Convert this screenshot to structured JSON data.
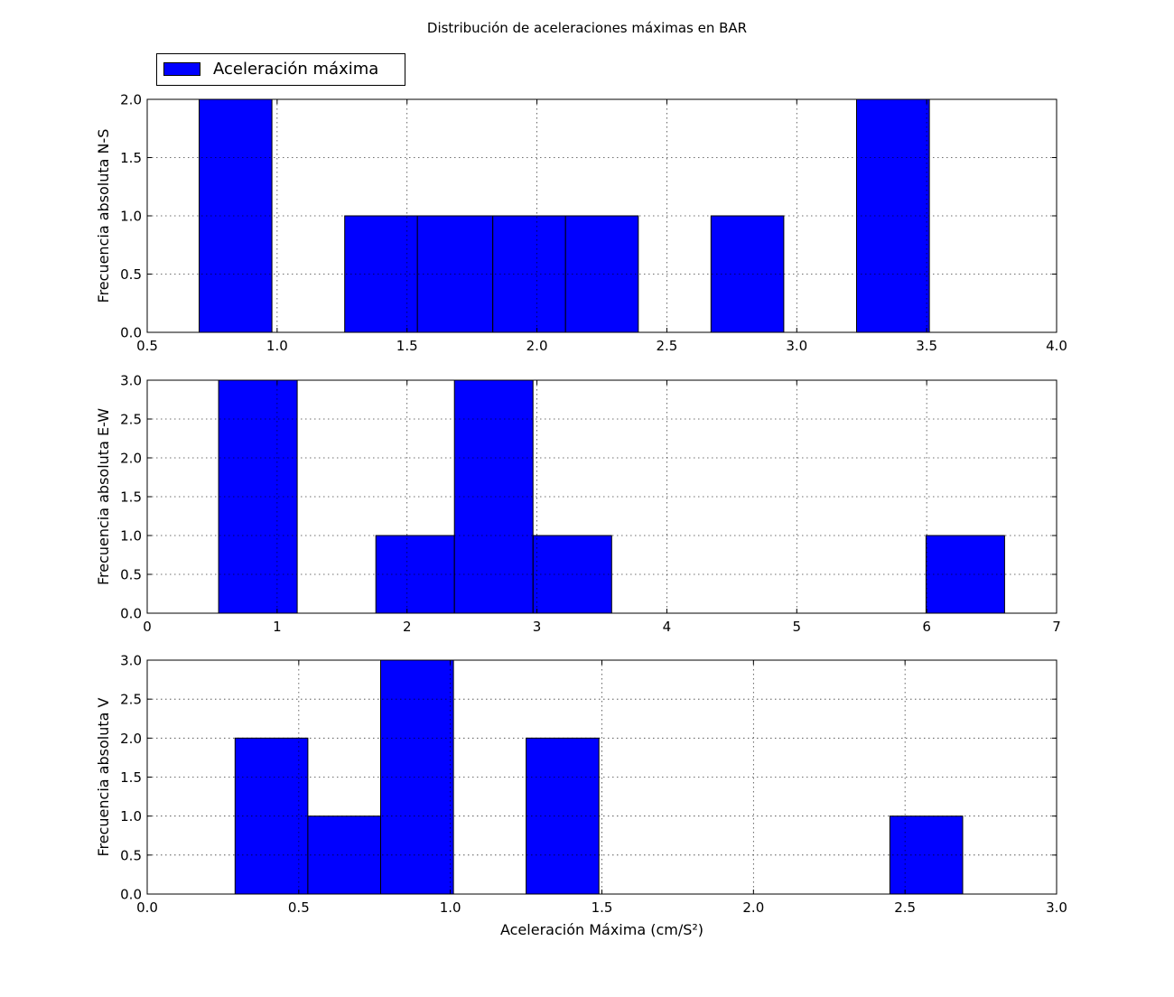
{
  "figure": {
    "title": "Distribución de aceleraciones máximas en BAR",
    "legend": {
      "label": "Aceleración máxima",
      "color": "#0000ff",
      "placement": "upper-left above top panel"
    }
  },
  "chart_data": [
    {
      "type": "bar",
      "subtype": "histogram",
      "ylabel": "Frecuencia absoluta N-S",
      "xlabel": "",
      "xlim": [
        0.5,
        4.0
      ],
      "ylim": [
        0,
        2.0
      ],
      "xticks": [
        "0.5",
        "1.0",
        "1.5",
        "2.0",
        "2.5",
        "3.0",
        "3.5",
        "4.0"
      ],
      "yticks": [
        "0.0",
        "0.5",
        "1.0",
        "1.5",
        "2.0"
      ],
      "grid": true,
      "bin_edges": [
        0.7,
        0.98,
        1.26,
        1.54,
        1.83,
        2.11,
        2.39,
        2.67,
        2.95,
        3.23,
        3.51
      ],
      "counts": [
        2,
        0,
        1,
        1,
        1,
        1,
        0,
        1,
        0,
        2
      ],
      "color": "#0000ff"
    },
    {
      "type": "bar",
      "subtype": "histogram",
      "ylabel": "Frecuencia absoluta E-W",
      "xlabel": "",
      "xlim": [
        0,
        7
      ],
      "ylim": [
        0,
        3.0
      ],
      "xticks": [
        "0",
        "1",
        "2",
        "3",
        "4",
        "5",
        "6",
        "7"
      ],
      "yticks": [
        "0.0",
        "0.5",
        "1.0",
        "1.5",
        "2.0",
        "2.5",
        "3.0"
      ],
      "grid": true,
      "bin_edges": [
        0.55,
        1.155,
        1.76,
        2.365,
        2.97,
        3.575,
        4.18,
        4.785,
        5.39,
        5.995,
        6.6
      ],
      "counts": [
        3,
        0,
        1,
        3,
        1,
        0,
        0,
        0,
        0,
        1
      ],
      "color": "#0000ff"
    },
    {
      "type": "bar",
      "subtype": "histogram",
      "ylabel": "Frecuencia absoluta V",
      "xlabel": "Aceleración Máxima (cm/S²)",
      "xlim": [
        0.0,
        3.0
      ],
      "ylim": [
        0,
        3.0
      ],
      "xticks": [
        "0.0",
        "0.5",
        "1.0",
        "1.5",
        "2.0",
        "2.5",
        "3.0"
      ],
      "yticks": [
        "0.0",
        "0.5",
        "1.0",
        "1.5",
        "2.0",
        "2.5",
        "3.0"
      ],
      "grid": true,
      "bin_edges": [
        0.29,
        0.53,
        0.77,
        1.01,
        1.25,
        1.49,
        1.73,
        1.97,
        2.21,
        2.45,
        2.69
      ],
      "counts": [
        2,
        1,
        3,
        0,
        2,
        0,
        0,
        0,
        0,
        1
      ],
      "color": "#0000ff"
    }
  ]
}
